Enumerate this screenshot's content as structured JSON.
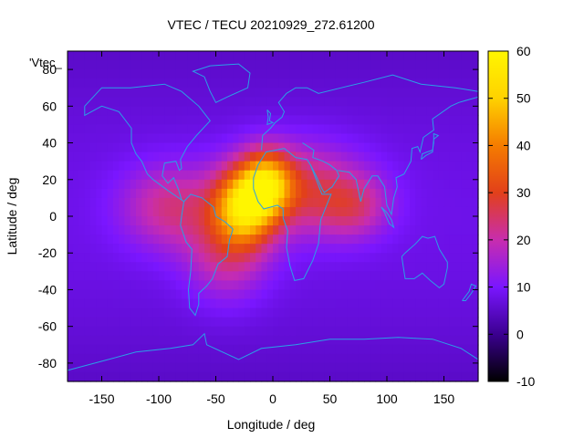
{
  "chart_data": {
    "type": "heatmap",
    "title": "VTEC / TECU 20210929_272.61200",
    "xlabel": "Longitude / deg",
    "ylabel": "Latitude / deg",
    "xlim": [
      -180,
      180
    ],
    "ylim": [
      -90,
      90
    ],
    "xticks": [
      -150,
      -100,
      -50,
      0,
      50,
      100,
      150
    ],
    "yticks": [
      -80,
      -60,
      -40,
      -20,
      0,
      20,
      40,
      60,
      80
    ],
    "colorbar": {
      "min": -10,
      "max": 60,
      "ticks": [
        -10,
        0,
        10,
        20,
        30,
        40,
        50,
        60
      ],
      "palette": [
        "#000000",
        "#3b0090",
        "#7a16ff",
        "#c82dae",
        "#e2401a",
        "#f57c00",
        "#ffd200",
        "#fff600"
      ]
    },
    "legend_label": "'Vtec_",
    "coastline_color": "#2aa0e6",
    "peaks": [
      {
        "lon": -25,
        "lat": 5,
        "vtec": 57,
        "s_lon": 18,
        "s_lat": 14
      },
      {
        "lon": -5,
        "lat": 18,
        "vtec": 45,
        "s_lon": 15,
        "s_lat": 12
      },
      {
        "lon": 20,
        "lat": 15,
        "vtec": 30,
        "s_lon": 40,
        "s_lat": 17
      },
      {
        "lon": -90,
        "lat": 5,
        "vtec": 25,
        "s_lon": 30,
        "s_lat": 16
      },
      {
        "lon": -40,
        "lat": -20,
        "vtec": 24,
        "s_lon": 25,
        "s_lat": 18
      },
      {
        "lon": 70,
        "lat": 5,
        "vtec": 22,
        "s_lon": 22,
        "s_lat": 12
      }
    ],
    "baseline_vtec": 5
  }
}
